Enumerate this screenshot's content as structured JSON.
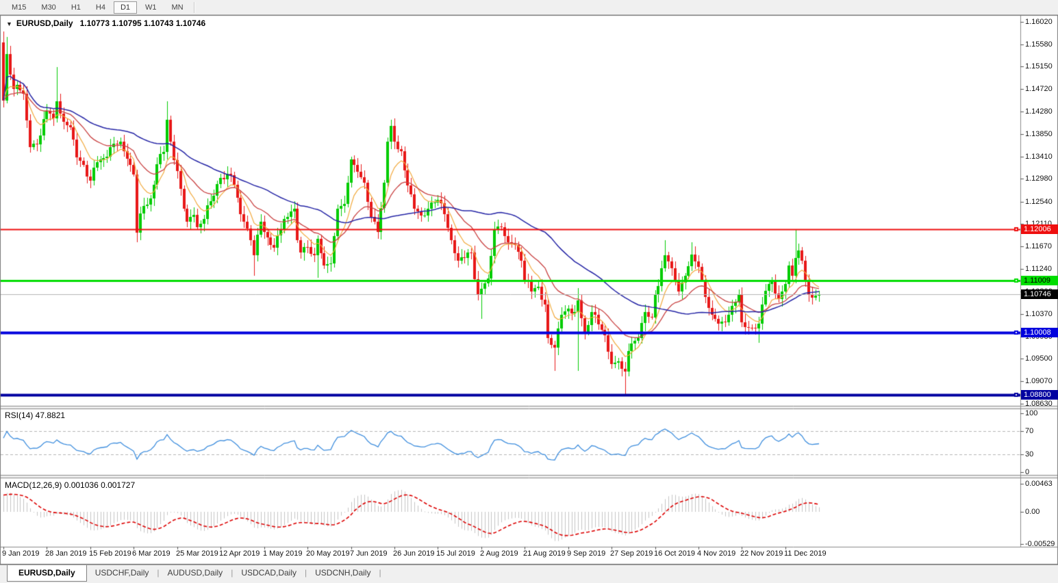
{
  "toolbar": {
    "timeframes": [
      "M15",
      "M30",
      "H1",
      "H4",
      "D1",
      "W1",
      "MN"
    ],
    "active": "D1"
  },
  "header": {
    "symbol": "EURUSD,Daily",
    "ohlc": "1.10773 1.10795 1.10743 1.10746",
    "open": "1.10773",
    "high": "1.10795",
    "low": "1.10743",
    "close": "1.10746"
  },
  "price_axis": {
    "ticks": [
      "1.16020",
      "1.15580",
      "1.15150",
      "1.14720",
      "1.14280",
      "1.13850",
      "1.13410",
      "1.12980",
      "1.12540",
      "1.12110",
      "1.11670",
      "1.11240",
      "1.10800",
      "1.10370",
      "1.09930",
      "1.09500",
      "1.09070",
      "1.08630"
    ]
  },
  "levels": [
    {
      "name": "resistance-line",
      "price": 1.12006,
      "label": "1.12006",
      "color": "#ee0f0f",
      "text_color": "#ffffff",
      "thickness": 2
    },
    {
      "name": "support-line-green",
      "price": 1.11009,
      "label": "1.11009",
      "color": "#00dd00",
      "text_color": "#000000",
      "thickness": 3
    },
    {
      "name": "support-line-blue",
      "price": 1.10008,
      "label": "1.10008",
      "color": "#0202dd",
      "text_color": "#ffffff",
      "thickness": 4
    },
    {
      "name": "support-line-navy",
      "price": 1.088,
      "label": "1.08800",
      "color": "#0000a0",
      "text_color": "#ffffff",
      "thickness": 4
    }
  ],
  "current_price": {
    "value": 1.10746,
    "label": "1.10746",
    "line_color": "#b4b4b4",
    "badge_bg": "#000000",
    "badge_text": "#ffffff"
  },
  "chart_data": {
    "type": "candlestick",
    "symbol": "EURUSD",
    "timeframe": "Daily",
    "bar_count": 245,
    "up_color": "#00cc00",
    "down_color": "#e81818",
    "first_open": 1.1562,
    "close_anchors": [
      [
        0,
        1.145
      ],
      [
        1,
        1.154
      ],
      [
        2,
        1.15
      ],
      [
        3,
        1.1472
      ],
      [
        4,
        1.148
      ],
      [
        6,
        1.1462
      ],
      [
        8,
        1.136
      ],
      [
        10,
        1.1365
      ],
      [
        13,
        1.143
      ],
      [
        15,
        1.1415
      ],
      [
        16,
        1.1448
      ],
      [
        18,
        1.1408
      ],
      [
        20,
        1.1398
      ],
      [
        22,
        1.134
      ],
      [
        24,
        1.1325
      ],
      [
        26,
        1.1295
      ],
      [
        28,
        1.133
      ],
      [
        30,
        1.1338
      ],
      [
        32,
        1.136
      ],
      [
        35,
        1.137
      ],
      [
        37,
        1.1337
      ],
      [
        39,
        1.1307
      ],
      [
        40,
        1.1194
      ],
      [
        42,
        1.1246
      ],
      [
        44,
        1.126
      ],
      [
        46,
        1.1326
      ],
      [
        48,
        1.135
      ],
      [
        49,
        1.1412
      ],
      [
        50,
        1.137
      ],
      [
        52,
        1.1313
      ],
      [
        54,
        1.124
      ],
      [
        55,
        1.1215
      ],
      [
        57,
        1.1228
      ],
      [
        58,
        1.1205
      ],
      [
        60,
        1.122
      ],
      [
        62,
        1.1255
      ],
      [
        65,
        1.13
      ],
      [
        68,
        1.1305
      ],
      [
        70,
        1.1262
      ],
      [
        72,
        1.1215
      ],
      [
        74,
        1.118
      ],
      [
        75,
        1.115
      ],
      [
        76,
        1.119
      ],
      [
        77,
        1.1215
      ],
      [
        78,
        1.1195
      ],
      [
        80,
        1.117
      ],
      [
        81,
        1.1165
      ],
      [
        83,
        1.12
      ],
      [
        84,
        1.122
      ],
      [
        86,
        1.1235
      ],
      [
        87,
        1.124
      ],
      [
        88,
        1.118
      ],
      [
        89,
        1.1155
      ],
      [
        91,
        1.1166
      ],
      [
        93,
        1.115
      ],
      [
        94,
        1.1182
      ],
      [
        96,
        1.113
      ],
      [
        98,
        1.1135
      ],
      [
        100,
        1.124
      ],
      [
        102,
        1.125
      ],
      [
        104,
        1.1335
      ],
      [
        106,
        1.1312
      ],
      [
        108,
        1.129
      ],
      [
        110,
        1.1225
      ],
      [
        112,
        1.1195
      ],
      [
        114,
        1.129
      ],
      [
        115,
        1.137
      ],
      [
        116,
        1.14
      ],
      [
        117,
        1.137
      ],
      [
        119,
        1.1352
      ],
      [
        121,
        1.1285
      ],
      [
        123,
        1.124
      ],
      [
        125,
        1.1227
      ],
      [
        127,
        1.124
      ],
      [
        128,
        1.1252
      ],
      [
        130,
        1.1258
      ],
      [
        132,
        1.123
      ],
      [
        134,
        1.118
      ],
      [
        136,
        1.114
      ],
      [
        138,
        1.1145
      ],
      [
        140,
        1.1155
      ],
      [
        142,
        1.1075
      ],
      [
        143,
        1.1085
      ],
      [
        145,
        1.1105
      ],
      [
        147,
        1.12
      ],
      [
        149,
        1.1205
      ],
      [
        151,
        1.1175
      ],
      [
        153,
        1.117
      ],
      [
        155,
        1.114
      ],
      [
        156,
        1.11
      ],
      [
        158,
        1.108
      ],
      [
        160,
        1.109
      ],
      [
        162,
        1.1055
      ],
      [
        163,
        1.099
      ],
      [
        165,
        1.0972
      ],
      [
        167,
        1.1035
      ],
      [
        169,
        1.1047
      ],
      [
        171,
        1.104
      ],
      [
        172,
        1.1063
      ],
      [
        174,
        1.1
      ],
      [
        176,
        1.104
      ],
      [
        178,
        1.1017
      ],
      [
        180,
        1.0995
      ],
      [
        182,
        1.094
      ],
      [
        184,
        1.0945
      ],
      [
        185,
        1.093
      ],
      [
        186,
        1.0925
      ],
      [
        187,
        1.0965
      ],
      [
        188,
        1.098
      ],
      [
        190,
        1.099
      ],
      [
        192,
        1.104
      ],
      [
        194,
        1.103
      ],
      [
        195,
        1.1074
      ],
      [
        197,
        1.1125
      ],
      [
        198,
        1.115
      ],
      [
        200,
        1.1125
      ],
      [
        202,
        1.108
      ],
      [
        204,
        1.111
      ],
      [
        206,
        1.1152
      ],
      [
        208,
        1.1128
      ],
      [
        210,
        1.107
      ],
      [
        212,
        1.1035
      ],
      [
        214,
        1.1018
      ],
      [
        216,
        1.1021
      ],
      [
        218,
        1.1052
      ],
      [
        220,
        1.1075
      ],
      [
        221,
        1.1021
      ],
      [
        223,
        1.101
      ],
      [
        226,
        1.1018
      ],
      [
        228,
        1.1082
      ],
      [
        230,
        1.11
      ],
      [
        232,
        1.1065
      ],
      [
        234,
        1.1095
      ],
      [
        235,
        1.113
      ],
      [
        236,
        1.111
      ],
      [
        237,
        1.1145
      ],
      [
        238,
        1.116
      ],
      [
        239,
        1.114
      ],
      [
        240,
        1.11
      ],
      [
        241,
        1.1075
      ],
      [
        242,
        1.1068
      ],
      [
        243,
        1.1072
      ],
      [
        244,
        1.10746
      ]
    ],
    "wick_overrides": [
      {
        "i": 0,
        "h": 1.1583
      },
      {
        "i": 1,
        "h": 1.1572
      },
      {
        "i": 16,
        "h": 1.1514
      },
      {
        "i": 40,
        "l": 1.1176
      },
      {
        "i": 49,
        "h": 1.1448
      },
      {
        "i": 75,
        "l": 1.111
      },
      {
        "i": 94,
        "l": 1.1107
      },
      {
        "i": 116,
        "h": 1.1412
      },
      {
        "i": 143,
        "l": 1.1027
      },
      {
        "i": 165,
        "l": 1.0926
      },
      {
        "i": 172,
        "l": 1.0927,
        "h": 1.1087
      },
      {
        "i": 186,
        "l": 1.0879
      },
      {
        "i": 198,
        "h": 1.1179
      },
      {
        "i": 206,
        "h": 1.1175
      },
      {
        "i": 226,
        "l": 1.0981
      },
      {
        "i": 237,
        "h": 1.12
      }
    ],
    "moving_averages": [
      {
        "name": "ma-fast",
        "type": "ema",
        "period": 8,
        "color": "#f2a93b",
        "width": 1.2
      },
      {
        "name": "ma-medium",
        "type": "ema",
        "period": 21,
        "color": "#c94040",
        "width": 1.3
      },
      {
        "name": "ma-slow",
        "type": "sma",
        "period": 50,
        "color": "#2323a5",
        "width": 1.5
      }
    ],
    "x_axis_dates": [
      "9 Jan 2019",
      "28 Jan 2019",
      "15 Feb 2019",
      "6 Mar 2019",
      "25 Mar 2019",
      "12 Apr 2019",
      "1 May 2019",
      "20 May 2019",
      "7 Jun 2019",
      "26 Jun 2019",
      "15 Jul 2019",
      "2 Aug 2019",
      "21 Aug 2019",
      "9 Sep 2019",
      "27 Sep 2019",
      "16 Oct 2019",
      "4 Nov 2019",
      "22 Nov 2019",
      "11 Dec 2019"
    ],
    "bars_per_date_tick": 13
  },
  "rsi": {
    "label": "RSI(14) 47.8821",
    "period": 14,
    "value": "47.8821",
    "line_color": "#3e8ede",
    "level_lines": [
      70,
      30
    ],
    "scale_ticks": [
      "100",
      "70",
      "30",
      "0"
    ]
  },
  "macd": {
    "label": "MACD(12,26,9) 0.001036 0.001727",
    "params": "12,26,9",
    "macd_value": "0.001036",
    "signal_value": "0.001727",
    "histogram_color": "#c4c4c4",
    "signal_color": "#dd0000",
    "scale_ticks": [
      {
        "label": "0.00463",
        "value": 0.00463
      },
      {
        "label": "0.00",
        "value": 0
      },
      {
        "label": "-0.00529",
        "value": -0.00529
      }
    ]
  },
  "bottom_tabs": {
    "tabs": [
      "EURUSD,Daily",
      "USDCHF,Daily",
      "AUDUSD,Daily",
      "USDCAD,Daily",
      "USDCNH,Daily"
    ],
    "active": "EURUSD,Daily"
  }
}
